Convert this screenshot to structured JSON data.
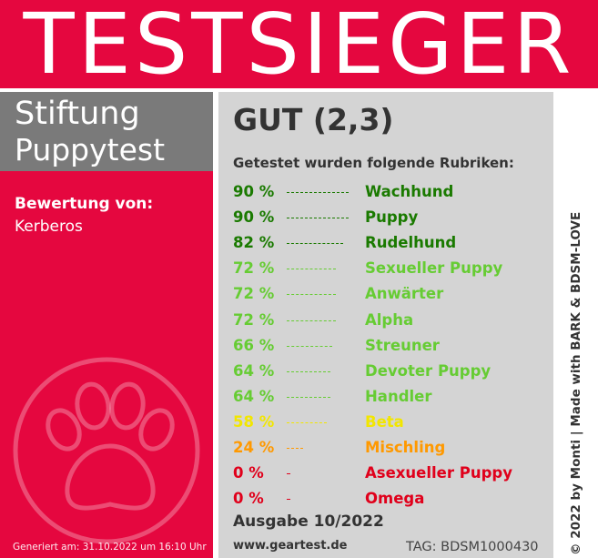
{
  "header": {
    "title": "TESTSIEGER"
  },
  "brand": {
    "line1": "Stiftung",
    "line2": "Puppytest"
  },
  "evaluation": {
    "label": "Bewertung von:",
    "value": "Kerberos"
  },
  "generated": "Generiert am: 31.10.2022 um 16:10 Uhr",
  "grade": "GUT (2,3)",
  "subtitle": "Getestet wurden folgende Rubriken:",
  "rows": [
    {
      "pct": "90 %",
      "name": "Wachhund",
      "value": 90,
      "color": "#1a7a00"
    },
    {
      "pct": "90 %",
      "name": "Puppy",
      "value": 90,
      "color": "#1a7a00"
    },
    {
      "pct": "82 %",
      "name": "Rudelhund",
      "value": 82,
      "color": "#1a7a00"
    },
    {
      "pct": "72 %",
      "name": "Sexueller Puppy",
      "value": 72,
      "color": "#66cc33"
    },
    {
      "pct": "72 %",
      "name": "Anwärter",
      "value": 72,
      "color": "#66cc33"
    },
    {
      "pct": "72 %",
      "name": "Alpha",
      "value": 72,
      "color": "#66cc33"
    },
    {
      "pct": "66 %",
      "name": "Streuner",
      "value": 66,
      "color": "#66cc33"
    },
    {
      "pct": "64 %",
      "name": "Devoter Puppy",
      "value": 64,
      "color": "#66cc33"
    },
    {
      "pct": "64 %",
      "name": "Handler",
      "value": 64,
      "color": "#66cc33"
    },
    {
      "pct": "58 %",
      "name": "Beta",
      "value": 58,
      "color": "#f2e600"
    },
    {
      "pct": "24 %",
      "name": "Mischling",
      "value": 24,
      "color": "#ff9900"
    },
    {
      "pct": "0 %",
      "name": "Asexueller Puppy",
      "value": 0,
      "color": "#e0001b"
    },
    {
      "pct": "0 %",
      "name": "Omega",
      "value": 0,
      "color": "#e0001b"
    }
  ],
  "issue": "Ausgabe 10/2022",
  "site": "www.geartest.de",
  "tag": "TAG: BDSM1000430",
  "vertical_text": "© 2022 by Monti | Made with BARK & BDSM-LOVE",
  "colors": {
    "red": "#e5073f",
    "gray": "#7a7a7a",
    "panel": "#d4d4d4"
  },
  "icons": {
    "paw": "paw-print-icon"
  }
}
